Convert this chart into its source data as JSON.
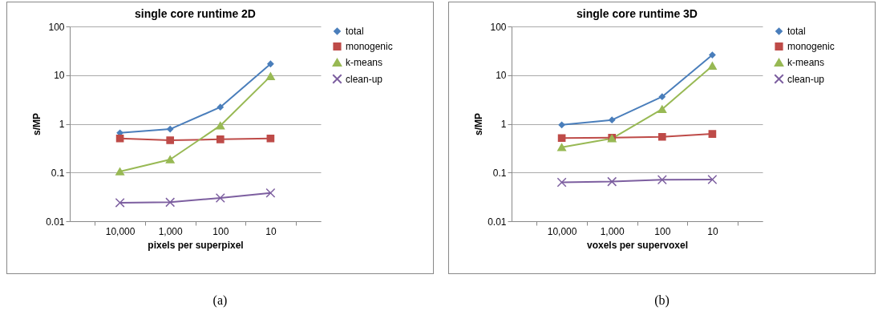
{
  "chart_data": [
    {
      "type": "line",
      "title": "single core runtime 2D",
      "xlabel": "pixels per superpixel",
      "ylabel": "s/MP",
      "categories": [
        "10,000",
        "1,000",
        "100",
        "10"
      ],
      "log": true,
      "ylim": [
        0.01,
        100
      ],
      "yticks": [
        0.01,
        0.1,
        1,
        10,
        100
      ],
      "grid": "y",
      "legend": "right",
      "line_style": "solid",
      "annotations": [
        "(a)"
      ],
      "series": [
        {
          "name": "total",
          "color": "#4a7ebb",
          "marker": "diamond",
          "values": [
            0.65,
            0.78,
            2.2,
            17
          ]
        },
        {
          "name": "monogenic",
          "color": "#be4b48",
          "marker": "square",
          "values": [
            0.5,
            0.46,
            0.48,
            0.5
          ]
        },
        {
          "name": "k-means",
          "color": "#98b954",
          "marker": "triangle",
          "values": [
            0.105,
            0.185,
            0.92,
            9.5
          ]
        },
        {
          "name": "clean-up",
          "color": "#7d5fa0",
          "marker": "cross",
          "values": [
            0.024,
            0.0245,
            0.03,
            0.038
          ]
        }
      ]
    },
    {
      "type": "line",
      "title": "single core runtime 3D",
      "xlabel": "voxels per supervoxel",
      "ylabel": "s/MP",
      "categories": [
        "10,000",
        "1,000",
        "100",
        "10"
      ],
      "log": true,
      "ylim": [
        0.01,
        100
      ],
      "yticks": [
        0.01,
        0.1,
        1,
        10,
        100
      ],
      "grid": "y",
      "legend": "right",
      "line_style": "solid",
      "annotations": [
        "(b)"
      ],
      "series": [
        {
          "name": "total",
          "color": "#4a7ebb",
          "marker": "diamond",
          "values": [
            0.95,
            1.2,
            3.6,
            26
          ]
        },
        {
          "name": "monogenic",
          "color": "#be4b48",
          "marker": "square",
          "values": [
            0.51,
            0.52,
            0.54,
            0.62
          ]
        },
        {
          "name": "k-means",
          "color": "#98b954",
          "marker": "triangle",
          "values": [
            0.33,
            0.5,
            2.0,
            15.5
          ]
        },
        {
          "name": "clean-up",
          "color": "#7d5fa0",
          "marker": "cross",
          "values": [
            0.063,
            0.065,
            0.071,
            0.072
          ]
        }
      ]
    }
  ]
}
